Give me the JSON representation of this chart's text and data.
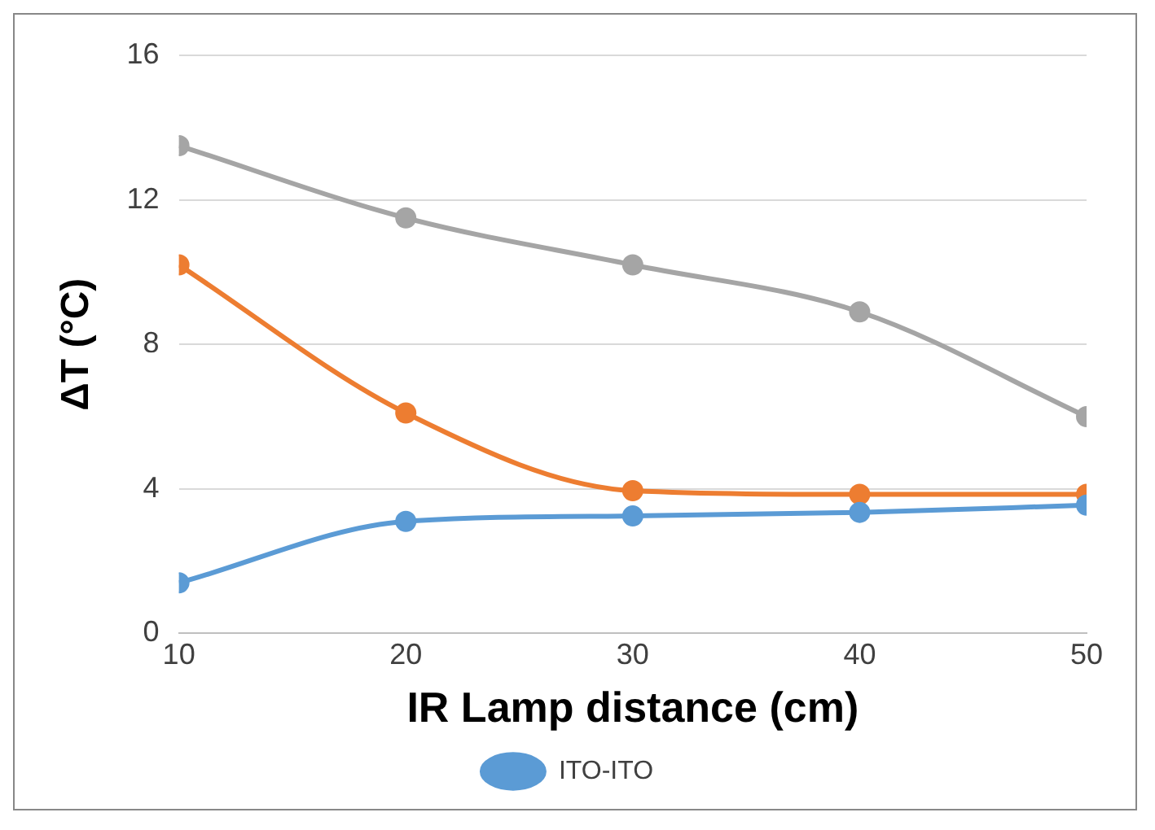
{
  "chart_data": {
    "type": "line",
    "xlabel": "IR Lamp distance (cm)",
    "ylabel": "ΔT (°C)",
    "x": [
      10,
      20,
      30,
      40,
      50
    ],
    "series": [
      {
        "name": "ITO-ITO",
        "color": "#5b9bd5",
        "values": [
          1.4,
          3.1,
          3.25,
          3.35,
          3.55
        ]
      },
      {
        "color": "#ed7d31",
        "values": [
          10.2,
          6.1,
          3.95,
          3.85,
          3.85
        ]
      },
      {
        "color": "#a5a5a5",
        "values": [
          13.5,
          11.5,
          10.2,
          8.9,
          6.0
        ]
      }
    ],
    "xlim": [
      10,
      50
    ],
    "xticks": [
      10,
      20,
      30,
      40,
      50
    ],
    "ylim": [
      0,
      16
    ],
    "yticks": [
      0,
      4,
      8,
      12,
      16
    ],
    "grid": "y",
    "legend": "bottom",
    "marker": "circle",
    "line_style": "solid"
  }
}
